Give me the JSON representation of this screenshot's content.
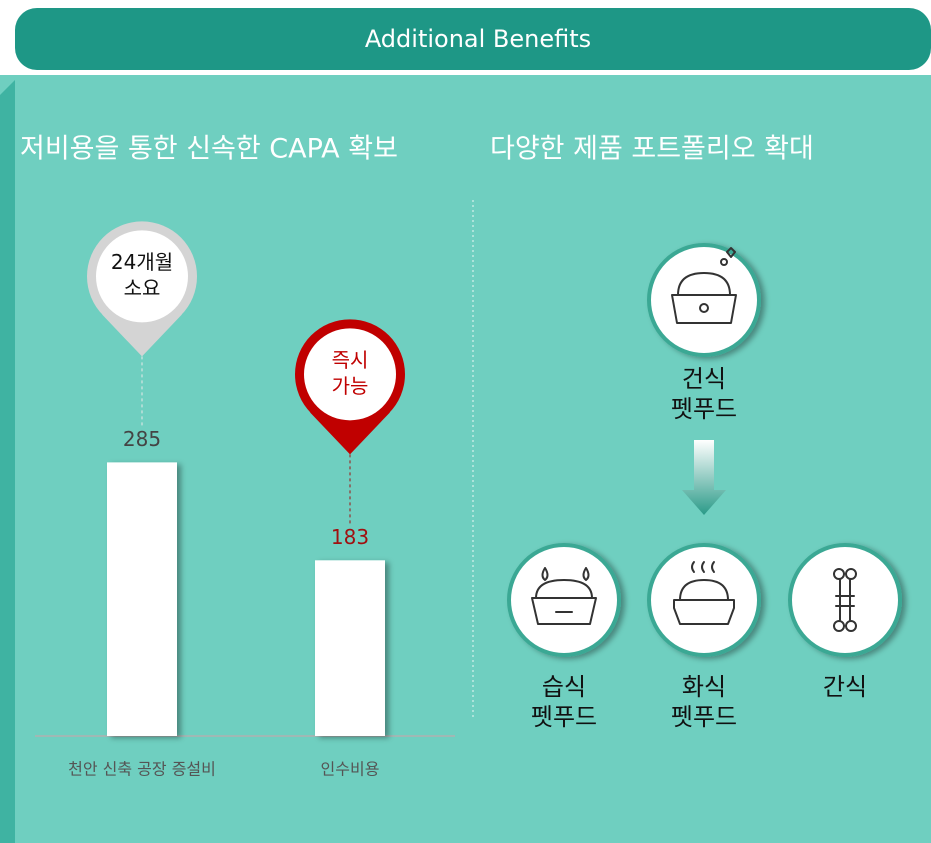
{
  "header": {
    "title": "Additional Benefits"
  },
  "chart_data": {
    "type": "bar",
    "title": "저비용을 통한 신속한 CAPA 확보",
    "categories": [
      "천안 신축 공장 증설비",
      "인수비용"
    ],
    "values": [
      285,
      183
    ],
    "color": "#ffffff",
    "annotations": [
      {
        "lines": [
          "24개월",
          "소요"
        ],
        "color": "#d4d4d4"
      },
      {
        "lines": [
          "즉시",
          "가능"
        ],
        "color": "#c00000"
      }
    ]
  },
  "diagram": {
    "title": "다양한 제품 포트폴리오 확대",
    "nodes": [
      {
        "lines": [
          "건식",
          "펫푸드"
        ]
      },
      {
        "lines": [
          "습식",
          "펫푸드"
        ]
      },
      {
        "lines": [
          "화식",
          "펫푸드"
        ]
      },
      {
        "lines": [
          "간식"
        ]
      }
    ]
  }
}
